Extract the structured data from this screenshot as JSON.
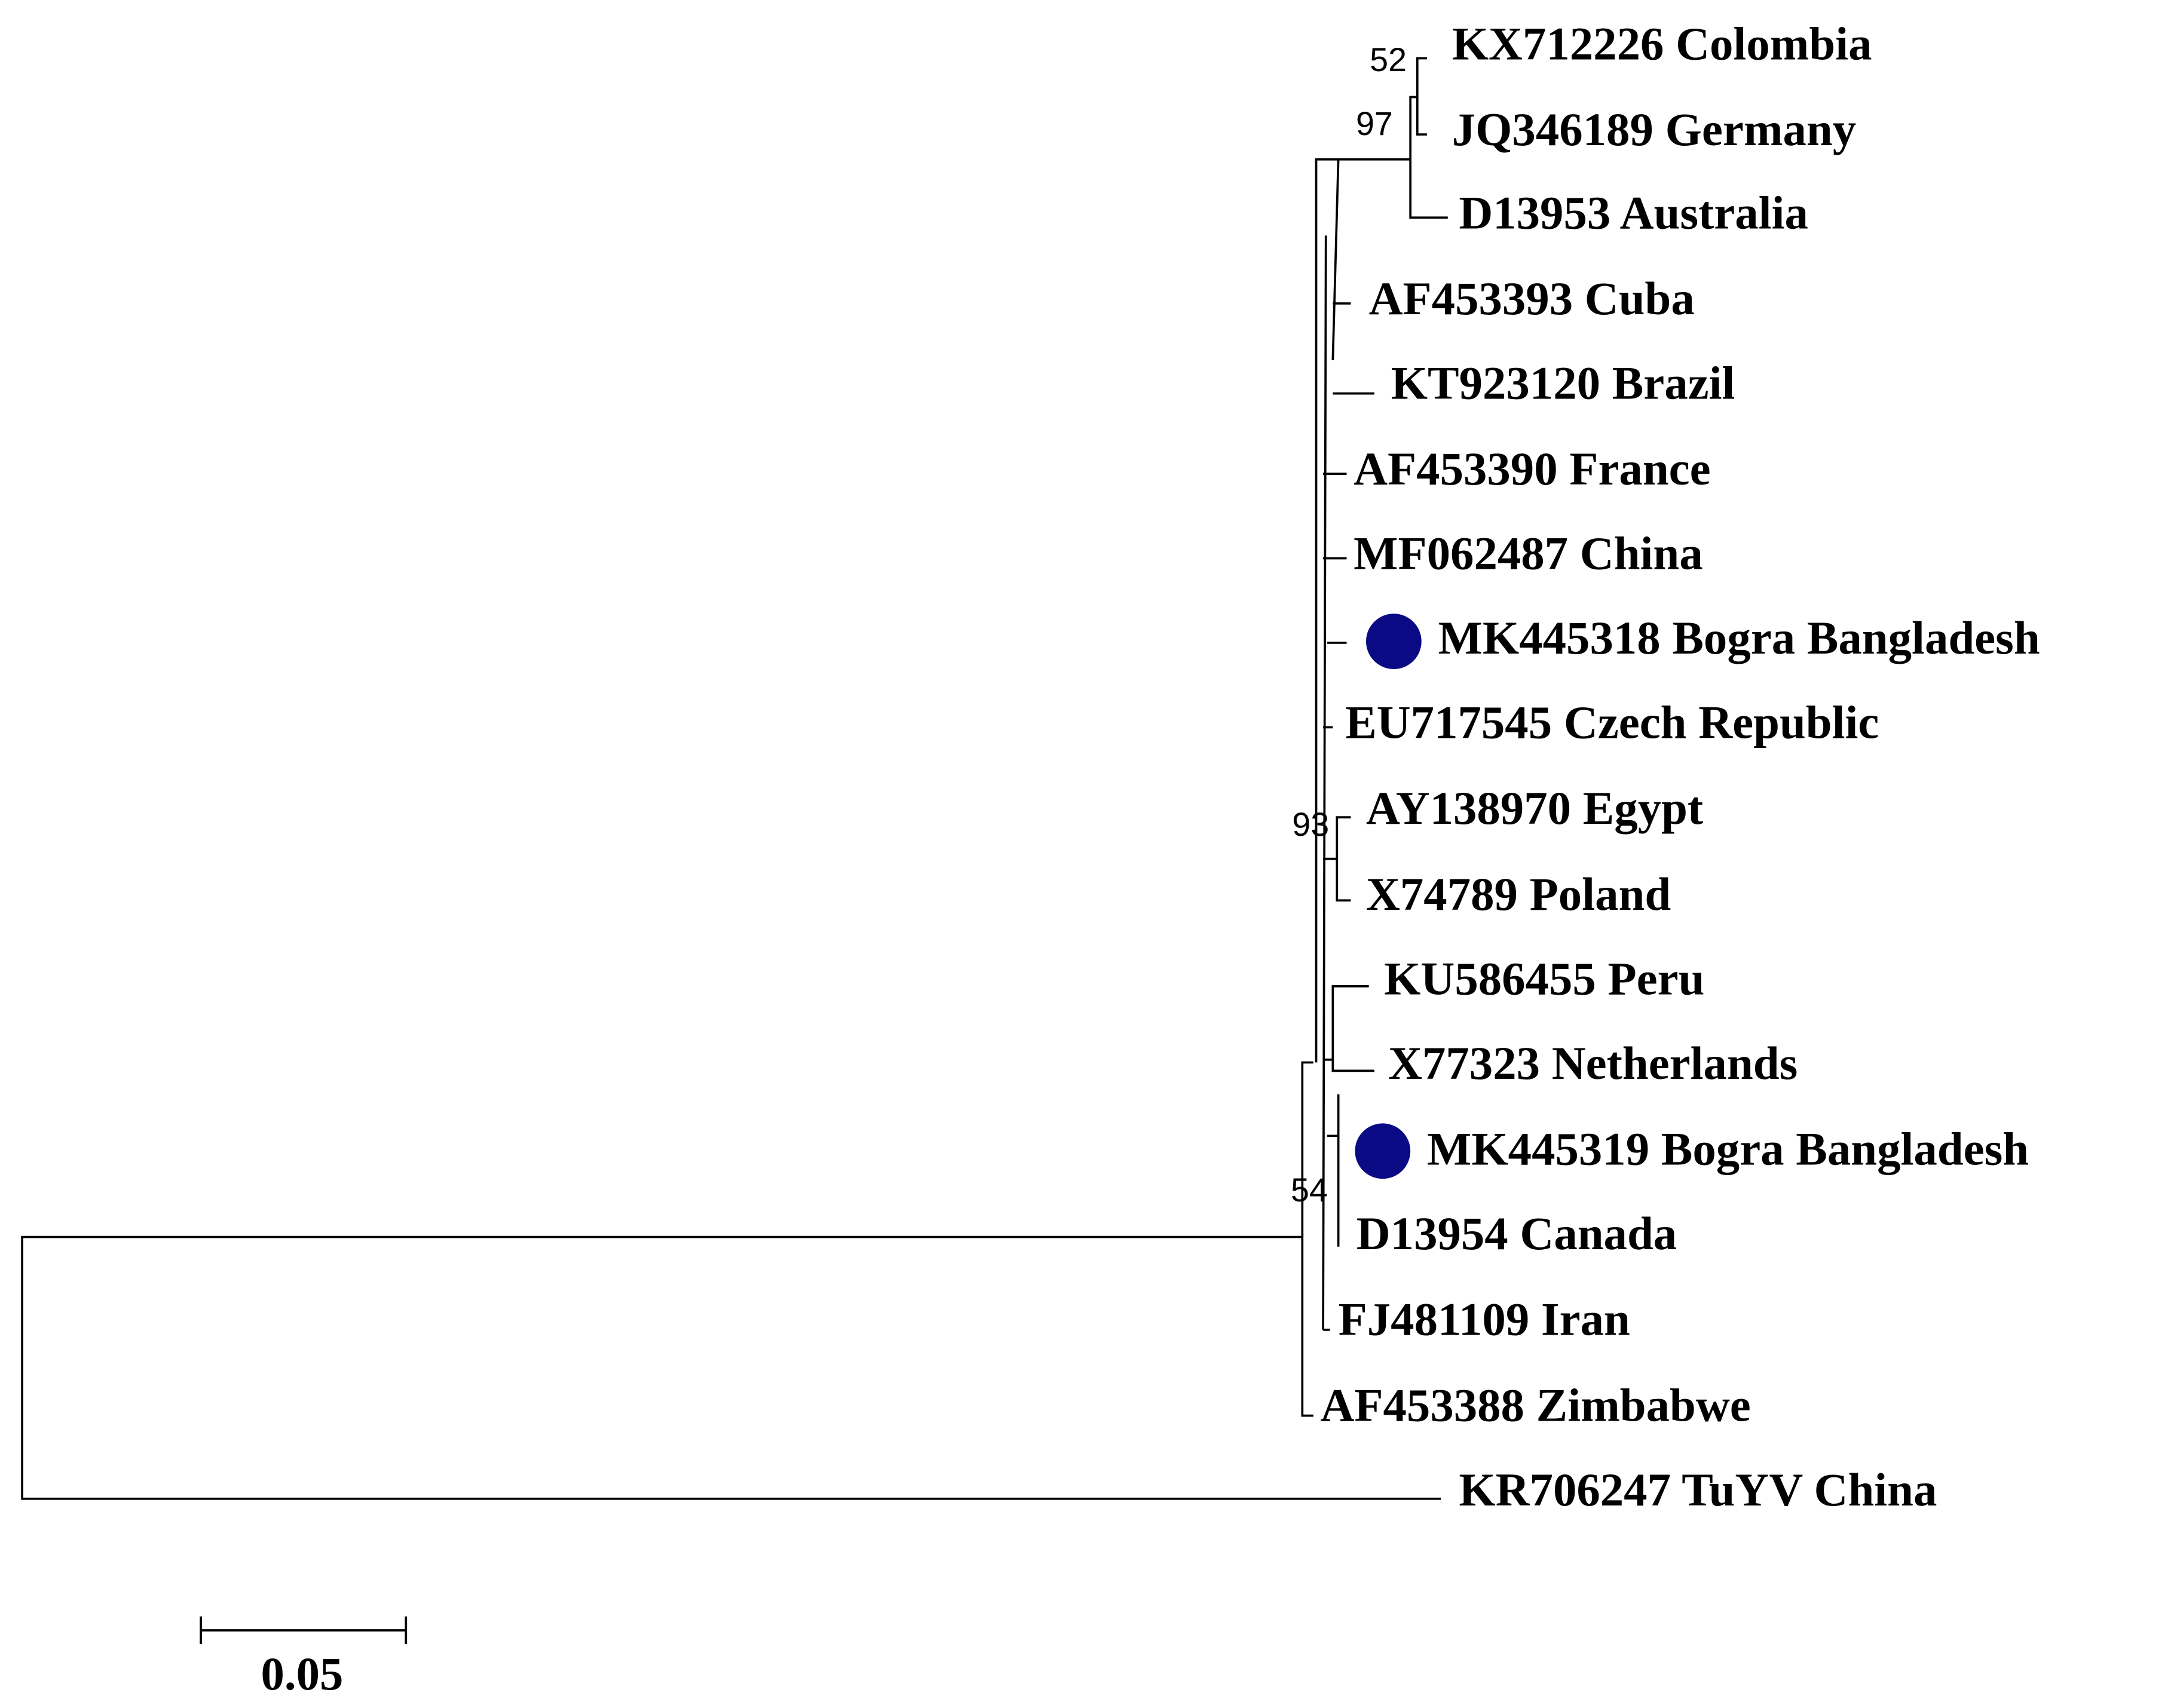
{
  "leaves": [
    {
      "label": "KX712226 Colombia"
    },
    {
      "label": "JQ346189 Germany"
    },
    {
      "label": "D13953 Australia"
    },
    {
      "label": "AF453393 Cuba"
    },
    {
      "label": "KT923120 Brazil"
    },
    {
      "label": "AF453390 France"
    },
    {
      "label": "MF062487 China"
    },
    {
      "label": "MK445318 Bogra Bangladesh"
    },
    {
      "label": "EU717545 Czech Republic"
    },
    {
      "label": "AY138970 Egypt"
    },
    {
      "label": "X74789 Poland"
    },
    {
      "label": "KU586455 Peru"
    },
    {
      "label": "X77323 Netherlands"
    },
    {
      "label": "MK445319 Bogra Bangladesh"
    },
    {
      "label": "D13954 Canada"
    },
    {
      "label": "FJ481109 Iran"
    },
    {
      "label": "AF453388 Zimbabwe"
    },
    {
      "label": "KR706247 TuYV China"
    }
  ],
  "bootstrap": [
    52,
    97,
    93,
    54
  ],
  "scale_bar": {
    "label": 0.05
  }
}
